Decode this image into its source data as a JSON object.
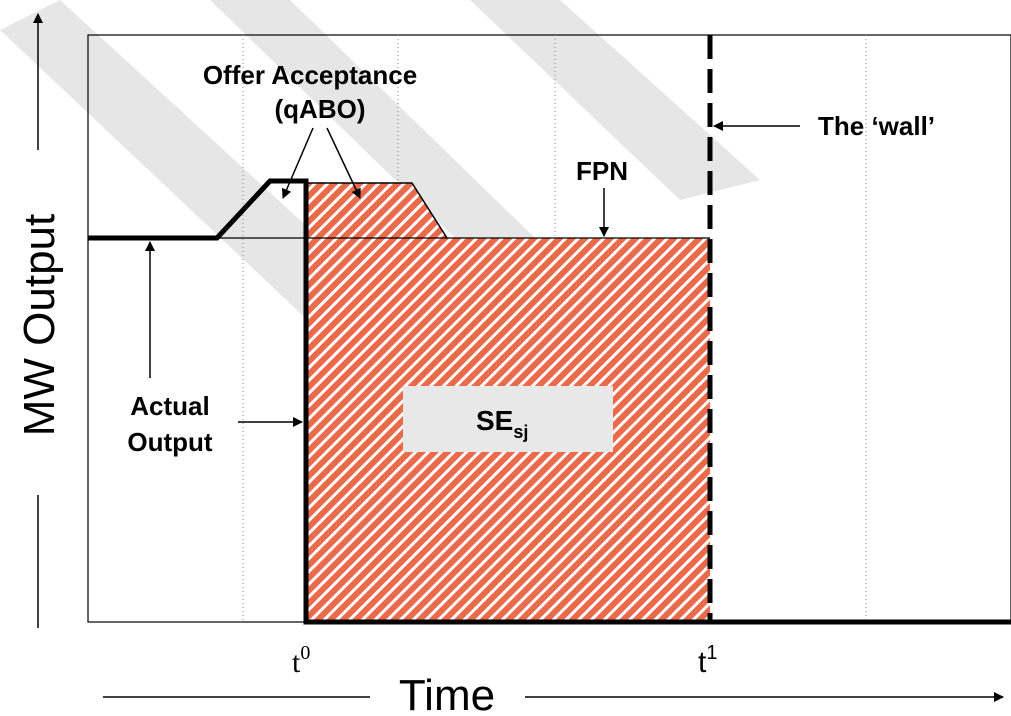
{
  "diagram": {
    "labels": {
      "offer_acceptance_line1": "Offer Acceptance",
      "offer_acceptance_line2": "(qABO)",
      "the_wall": "The ‘wall’",
      "fpn": "FPN",
      "actual_output_line1": "Actual",
      "actual_output_line2": "Output",
      "se_main": "SE",
      "se_sub": "sj"
    },
    "axes": {
      "y_title": "MW Output",
      "x_title": "Time",
      "ticks": {
        "t0_base": "t",
        "t0_sup": "0",
        "t1_base": "t",
        "t1_sup": "1"
      }
    },
    "colors": {
      "hatch_fill": "#ea6b4c",
      "hatch_stripe": "#ffffff",
      "frame": "#000000",
      "grid": "#888888",
      "watermark": "#e6e6e6",
      "label_box": "#e8e8e8"
    }
  }
}
